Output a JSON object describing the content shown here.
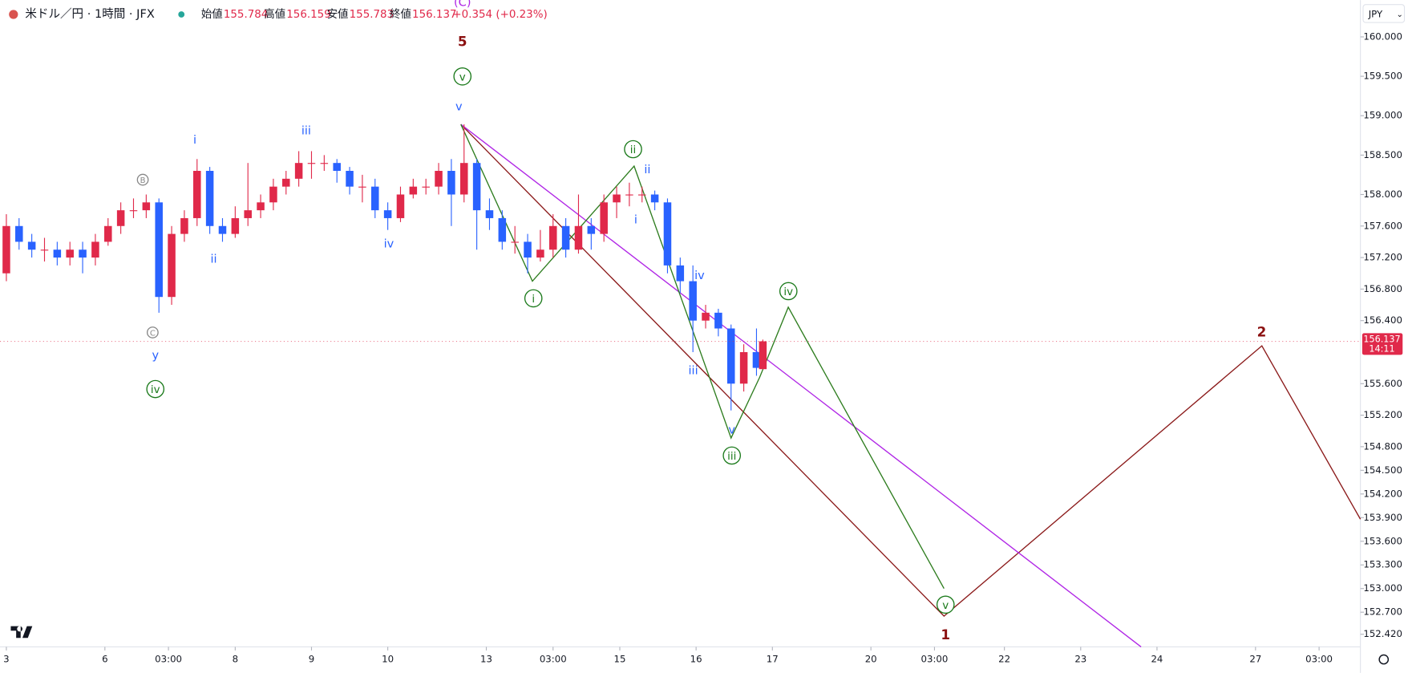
{
  "chart_data": {
    "type": "candlestick",
    "title": "米ドル／円 · 1時間 · JFX",
    "ohlc_labels": [
      "始値",
      "高値",
      "安値",
      "終値"
    ],
    "change_label": "+0.354 (+0.23%)",
    "currency": "JPY",
    "countdown": "14:11",
    "up_color": "#e0294a",
    "down_color": "#2962ff",
    "candles": {
      "x": [
        0,
        4,
        8,
        12,
        16,
        20,
        24,
        28,
        32,
        36,
        40,
        44,
        48,
        52,
        56,
        60,
        64,
        68,
        72,
        76,
        80,
        84,
        88,
        92,
        96,
        100,
        104,
        108,
        112,
        116,
        120,
        124,
        128,
        132,
        136,
        140,
        144,
        148,
        152,
        156,
        160,
        164,
        168,
        172,
        176,
        180,
        184,
        188,
        192,
        196,
        200,
        204,
        208,
        212,
        216,
        220,
        224,
        228,
        232,
        236,
        238
      ],
      "open": [
        157.0,
        157.6,
        157.4,
        157.3,
        157.3,
        157.2,
        157.3,
        157.2,
        157.4,
        157.6,
        157.8,
        157.8,
        157.9,
        156.7,
        157.5,
        157.7,
        158.3,
        157.6,
        157.5,
        157.7,
        157.8,
        157.9,
        158.1,
        158.2,
        158.4,
        158.4,
        158.4,
        158.3,
        158.1,
        158.1,
        157.8,
        157.7,
        158.0,
        158.1,
        158.1,
        158.3,
        158.0,
        158.4,
        157.8,
        157.7,
        157.4,
        157.4,
        157.2,
        157.3,
        157.6,
        157.3,
        157.6,
        157.5,
        157.9,
        158.0,
        158.0,
        158.0,
        157.9,
        157.1,
        156.9,
        156.4,
        156.5,
        156.3,
        155.6,
        156.0,
        155.784
      ],
      "high": [
        157.75,
        157.7,
        157.5,
        157.45,
        157.4,
        157.4,
        157.4,
        157.5,
        157.7,
        157.9,
        157.95,
        158.0,
        157.95,
        157.6,
        157.8,
        158.45,
        158.35,
        157.7,
        157.85,
        158.4,
        158.0,
        158.2,
        158.3,
        158.55,
        158.55,
        158.5,
        158.45,
        158.35,
        158.25,
        158.2,
        157.9,
        158.1,
        158.2,
        158.2,
        158.4,
        158.45,
        158.89,
        158.45,
        157.95,
        157.8,
        157.6,
        157.5,
        157.55,
        157.75,
        157.7,
        158.0,
        157.7,
        158.0,
        158.1,
        158.15,
        158.1,
        158.05,
        157.95,
        157.2,
        157.1,
        156.6,
        156.55,
        156.35,
        156.1,
        156.3,
        156.159
      ],
      "low": [
        156.9,
        157.3,
        157.2,
        157.15,
        157.1,
        157.1,
        157.0,
        157.1,
        157.35,
        157.5,
        157.7,
        157.7,
        156.5,
        156.6,
        157.4,
        157.6,
        157.5,
        157.4,
        157.45,
        157.6,
        157.7,
        157.8,
        158.0,
        158.1,
        158.2,
        158.3,
        158.15,
        158.0,
        157.9,
        157.7,
        157.55,
        157.65,
        157.95,
        158.0,
        158.0,
        157.6,
        157.9,
        157.3,
        157.55,
        157.3,
        157.25,
        157.0,
        157.15,
        157.2,
        157.2,
        157.25,
        157.3,
        157.4,
        157.7,
        157.85,
        157.9,
        157.8,
        157.0,
        156.75,
        156.0,
        156.3,
        156.2,
        155.26,
        155.5,
        155.7,
        155.783
      ],
      "close": [
        157.6,
        157.4,
        157.3,
        157.3,
        157.2,
        157.3,
        157.2,
        157.4,
        157.6,
        157.8,
        157.8,
        157.9,
        156.7,
        157.5,
        157.7,
        158.3,
        157.6,
        157.5,
        157.7,
        157.8,
        157.9,
        158.1,
        158.2,
        158.4,
        158.4,
        158.4,
        158.3,
        158.1,
        158.1,
        157.8,
        157.7,
        158.0,
        158.1,
        158.1,
        158.3,
        158.0,
        158.4,
        157.8,
        157.7,
        157.4,
        157.4,
        157.2,
        157.3,
        157.6,
        157.3,
        157.6,
        157.5,
        157.9,
        158.0,
        158.0,
        158.0,
        157.9,
        157.1,
        156.9,
        156.4,
        156.5,
        156.3,
        155.6,
        156.0,
        155.8,
        156.137
      ]
    },
    "drawings": [
      {
        "color": "#8b1a1a",
        "x": [
          143,
          295,
          395,
          426
        ],
        "values": [
          158.89,
          152.65,
          156.08,
          153.88
        ]
      },
      {
        "color": "#b026e6",
        "x": [
          143,
          357
        ],
        "values": [
          158.89,
          152.26
        ]
      },
      {
        "color": "#2e7d1f",
        "x": [
          143,
          165.5,
          197.5,
          228,
          237,
          246,
          295
        ],
        "values": [
          158.89,
          156.9,
          158.36,
          154.91,
          155.68,
          156.57,
          153.0
        ]
      }
    ],
    "wave_labels": [
      "(C)",
      "5",
      "v",
      "v",
      "i",
      "iii",
      "ii",
      "iv",
      "y",
      "iv",
      "B",
      "C",
      "ii",
      "ii",
      "i",
      "i",
      "iv",
      "iii",
      "v",
      "iii",
      "iv",
      "v",
      "1",
      "2"
    ],
    "xlim": [
      -2,
      426
    ],
    "ylim": [
      152.26,
      160.467
    ],
    "xticks": [
      {
        "value": 0,
        "label": "3"
      },
      {
        "value": 31,
        "label": "6"
      },
      {
        "value": 51,
        "label": "03:00"
      },
      {
        "value": 72,
        "label": "8"
      },
      {
        "value": 96,
        "label": "9"
      },
      {
        "value": 120,
        "label": "10"
      },
      {
        "value": 151,
        "label": "13"
      },
      {
        "value": 172,
        "label": "03:00"
      },
      {
        "value": 193,
        "label": "15"
      },
      {
        "value": 217,
        "label": "16"
      },
      {
        "value": 241,
        "label": "17"
      },
      {
        "value": 272,
        "label": "20"
      },
      {
        "value": 292,
        "label": "03:00"
      },
      {
        "value": 314,
        "label": "22"
      },
      {
        "value": 338,
        "label": "23"
      },
      {
        "value": 362,
        "label": "24"
      },
      {
        "value": 393,
        "label": "27"
      },
      {
        "value": 413,
        "label": "03:00"
      }
    ],
    "yticks": [
      {
        "value": 160,
        "label": "160.000"
      },
      {
        "value": 159.5,
        "label": "159.500"
      },
      {
        "value": 159,
        "label": "159.000"
      },
      {
        "value": 158.5,
        "label": "158.500"
      },
      {
        "value": 158,
        "label": "158.000"
      },
      {
        "value": 157.6,
        "label": "157.600"
      },
      {
        "value": 157.2,
        "label": "157.200"
      },
      {
        "value": 156.8,
        "label": "156.800"
      },
      {
        "value": 156.4,
        "label": "156.400"
      },
      {
        "value": 155.6,
        "label": "155.600"
      },
      {
        "value": 155.2,
        "label": "155.200"
      },
      {
        "value": 154.8,
        "label": "154.800"
      },
      {
        "value": 154.5,
        "label": "154.500"
      },
      {
        "value": 154.2,
        "label": "154.200"
      },
      {
        "value": 153.9,
        "label": "153.900"
      },
      {
        "value": 153.6,
        "label": "153.600"
      },
      {
        "value": 153.3,
        "label": "153.300"
      },
      {
        "value": 153,
        "label": "153.000"
      },
      {
        "value": 152.7,
        "label": "152.700"
      },
      {
        "value": 152.42,
        "label": "152.420"
      }
    ],
    "grid": false
  }
}
